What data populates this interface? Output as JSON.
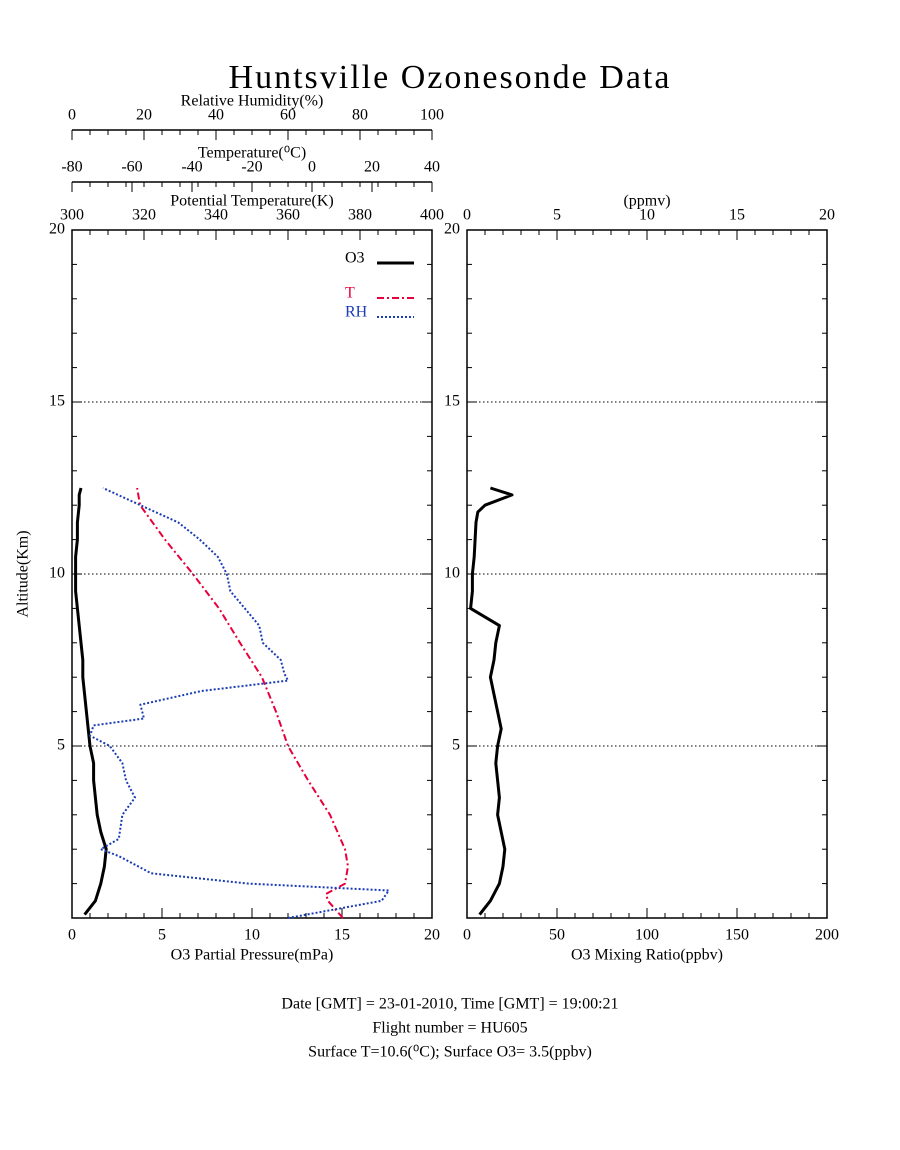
{
  "chart_data": [
    {
      "type": "line",
      "title": "Huntsville Ozonesonde Data",
      "xlabel": "O3 Partial Pressure(mPa)",
      "ylabel": "Altitude(Km)",
      "xlim": [
        0,
        20
      ],
      "xticks": [
        0,
        5,
        10,
        15,
        20
      ],
      "ylim": [
        0,
        20
      ],
      "yticks": [
        5,
        10,
        15,
        20
      ],
      "grid": true,
      "top_axes": [
        {
          "label": "Relative Humidity(%)",
          "lim": [
            0,
            100
          ],
          "ticks": [
            0,
            20,
            40,
            60,
            80,
            100
          ]
        },
        {
          "label": "Temperature(⁰C)",
          "lim": [
            -80,
            40
          ],
          "ticks": [
            -80,
            -60,
            -40,
            -20,
            0,
            20,
            40
          ]
        },
        {
          "label": "Potential Temperature(K)",
          "lim": [
            300,
            400
          ],
          "ticks": [
            300,
            320,
            340,
            360,
            380,
            400
          ]
        }
      ],
      "series": [
        {
          "name": "O3",
          "color": "#000000",
          "style": "solid",
          "altitude": [
            0.1,
            0.5,
            1,
            1.5,
            2,
            2.5,
            3,
            3.5,
            4,
            4.5,
            5,
            5.5,
            6,
            6.5,
            7,
            7.5,
            8,
            8.5,
            9,
            9.5,
            10,
            10.5,
            11,
            11.5,
            12,
            12.3,
            12.5
          ],
          "values": [
            0.7,
            1.3,
            1.6,
            1.8,
            1.9,
            1.6,
            1.4,
            1.3,
            1.2,
            1.2,
            1.0,
            0.9,
            0.8,
            0.7,
            0.6,
            0.6,
            0.5,
            0.4,
            0.3,
            0.2,
            0.2,
            0.2,
            0.3,
            0.3,
            0.4,
            0.4,
            0.5
          ]
        },
        {
          "name": "T",
          "color": "#e8003c",
          "style": "dash-dot",
          "axis": 1,
          "altitude": [
            0,
            0.5,
            0.7,
            1,
            1.5,
            2,
            3,
            4,
            5,
            6,
            7,
            8,
            9,
            10,
            11,
            12,
            12.5
          ],
          "values": [
            10.3,
            5.3,
            4.7,
            11,
            12,
            11,
            6,
            -1.3,
            -8,
            -12,
            -16.7,
            -24,
            -31,
            -39.7,
            -49,
            -57.3,
            -58.3
          ]
        },
        {
          "name": "RH",
          "color": "#1a3cb4",
          "style": "dotted",
          "axis": 0,
          "altitude": [
            0,
            0.5,
            0.8,
            1,
            1.3,
            1.8,
            2,
            2.3,
            3,
            3.5,
            4,
            4.5,
            5,
            5.3,
            5.6,
            5.8,
            6.2,
            6.6,
            6.9,
            7.1,
            7.5,
            8,
            8.5,
            9,
            9.5,
            10,
            10.5,
            11,
            11.5,
            12,
            12.5
          ],
          "values": [
            60,
            86,
            88,
            49,
            22,
            13,
            8,
            13,
            14,
            17.5,
            15,
            14,
            10.5,
            5,
            6,
            20,
            19,
            36,
            60,
            59,
            58,
            53,
            52,
            48,
            44,
            43,
            40.5,
            35.5,
            29.5,
            19,
            8.6
          ]
        }
      ]
    },
    {
      "type": "line",
      "xlabel": "O3 Mixing Ratio(ppbv)",
      "xlim": [
        0,
        200
      ],
      "xticks": [
        0,
        50,
        100,
        150,
        200
      ],
      "ylim": [
        0,
        20
      ],
      "yticks": [
        5,
        10,
        15,
        20
      ],
      "grid": true,
      "top_axes": [
        {
          "label": "(ppmv)",
          "lim": [
            0,
            20
          ],
          "ticks": [
            0,
            5,
            10,
            15,
            20
          ]
        }
      ],
      "series": [
        {
          "color": "#000000",
          "style": "solid",
          "altitude": [
            0.1,
            0.5,
            1,
            1.5,
            2,
            2.5,
            3,
            3.5,
            4,
            4.5,
            5,
            5.5,
            6,
            6.5,
            7,
            7.5,
            8,
            8.5,
            9,
            9.5,
            10,
            10.5,
            11,
            11.5,
            11.8,
            12,
            12.3,
            12.5
          ],
          "values": [
            7,
            13,
            18,
            20,
            21,
            19,
            17,
            18,
            17,
            16,
            17,
            19,
            17,
            15,
            13,
            15,
            16,
            18,
            2,
            3,
            3,
            4,
            4.5,
            5,
            6,
            10,
            25,
            13
          ]
        }
      ]
    }
  ],
  "footer": [
    "Date [GMT] = 23-01-2010,  Time [GMT] = 19:00:21",
    "Flight number = HU605",
    "Surface T=10.6(⁰C); Surface O3= 3.5(ppbv)"
  ]
}
